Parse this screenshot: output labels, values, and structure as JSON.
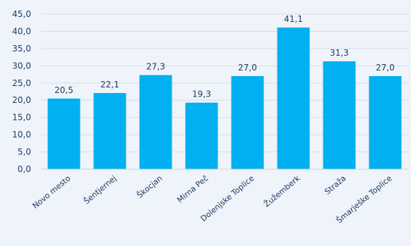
{
  "chart_data": {
    "type": "bar",
    "categories": [
      "Novo mesto",
      "Šentjernej",
      "Škocjan",
      "Mirna Peč",
      "Dolenjske Toplice",
      "Žužemberk",
      "Straža",
      "Šmarješke Toplice"
    ],
    "values": [
      20.5,
      22.1,
      27.3,
      19.3,
      27.0,
      41.1,
      31.3,
      27.0
    ],
    "value_labels": [
      "20,5",
      "22,1",
      "27,3",
      "19,3",
      "27,0",
      "41,1",
      "31,3",
      "27,0"
    ],
    "y_ticks": [
      "0,0",
      "5,0",
      "10,0",
      "15,0",
      "20,0",
      "25,0",
      "30,0",
      "35,0",
      "40,0",
      "45,0"
    ],
    "ylim": [
      0,
      45
    ],
    "grid": true,
    "colors": {
      "bar": "#00b0f0",
      "background": "#eef4fa",
      "text": "#1f3b60"
    }
  }
}
